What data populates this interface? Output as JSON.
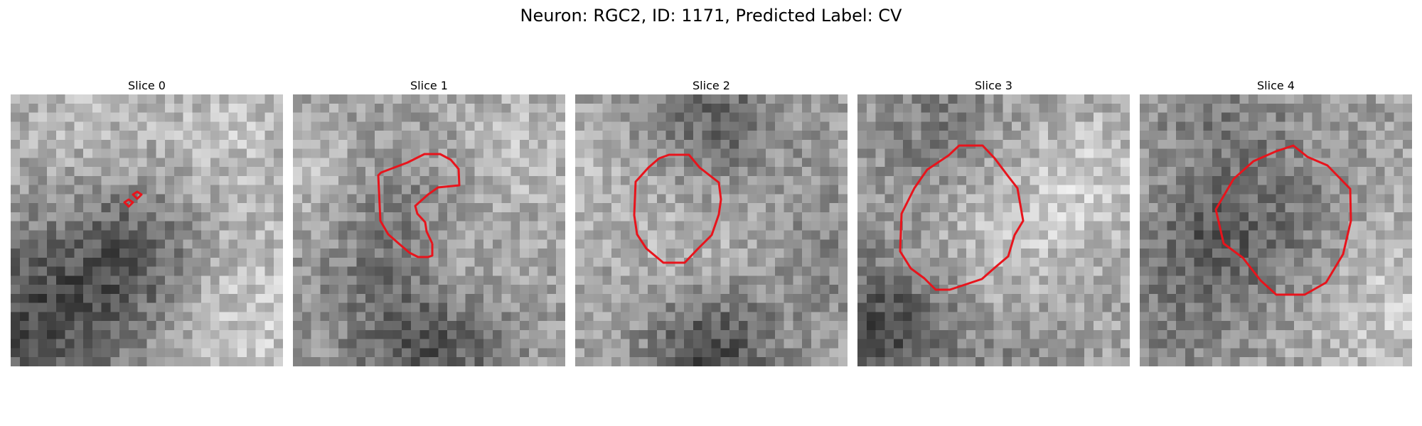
{
  "figure": {
    "title": "Neuron: RGC2, ID: 1171, Predicted Label: CV"
  },
  "colors": {
    "contour": "#e8141c"
  },
  "slices": [
    {
      "title": "Slice 0",
      "image": "grayscale-microscopy-slice",
      "contour": "two-small-markers"
    },
    {
      "title": "Slice 1",
      "image": "grayscale-microscopy-slice",
      "contour": "partial-c-shape"
    },
    {
      "title": "Slice 2",
      "image": "grayscale-microscopy-slice",
      "contour": "octagon"
    },
    {
      "title": "Slice 3",
      "image": "grayscale-microscopy-slice",
      "contour": "ring"
    },
    {
      "title": "Slice 4",
      "image": "grayscale-microscopy-slice",
      "contour": "ring"
    }
  ]
}
